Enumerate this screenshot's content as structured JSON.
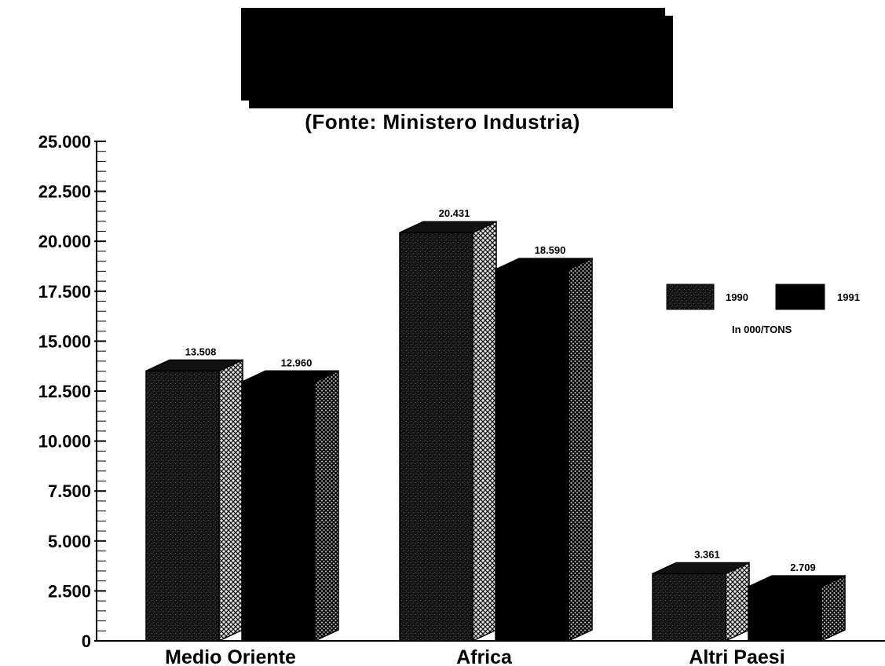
{
  "chart_data": {
    "type": "bar",
    "title": "",
    "subtitle": "(Fonte: Ministero Industria)",
    "unit_label": "In 000/TONS",
    "categories": [
      "Medio Oriente",
      "Africa",
      "Altri Paesi"
    ],
    "series": [
      {
        "name": "1990",
        "values": [
          13508,
          20431,
          3361
        ],
        "value_labels": [
          "13.508",
          "20.431",
          "3.361"
        ],
        "color": "#1a1a1a",
        "pattern": "stipple"
      },
      {
        "name": "1991",
        "values": [
          12960,
          18590,
          2709
        ],
        "value_labels": [
          "12.960",
          "18.590",
          "2.709"
        ],
        "color": "#000000",
        "pattern": "solid"
      }
    ],
    "ylim": [
      0,
      25000
    ],
    "y_ticks": [
      {
        "value": 0,
        "label": "0"
      },
      {
        "value": 2500,
        "label": "2.500"
      },
      {
        "value": 5000,
        "label": "5.000"
      },
      {
        "value": 7500,
        "label": "7.500"
      },
      {
        "value": 10000,
        "label": "10.000"
      },
      {
        "value": 12500,
        "label": "12.500"
      },
      {
        "value": 15000,
        "label": "15.000"
      },
      {
        "value": 17500,
        "label": "17.500"
      },
      {
        "value": 20000,
        "label": "20.000"
      },
      {
        "value": 22500,
        "label": "22.500"
      },
      {
        "value": 25000,
        "label": "25.000"
      }
    ],
    "xlabel": "",
    "ylabel": "",
    "grid": false,
    "legend": "right"
  }
}
